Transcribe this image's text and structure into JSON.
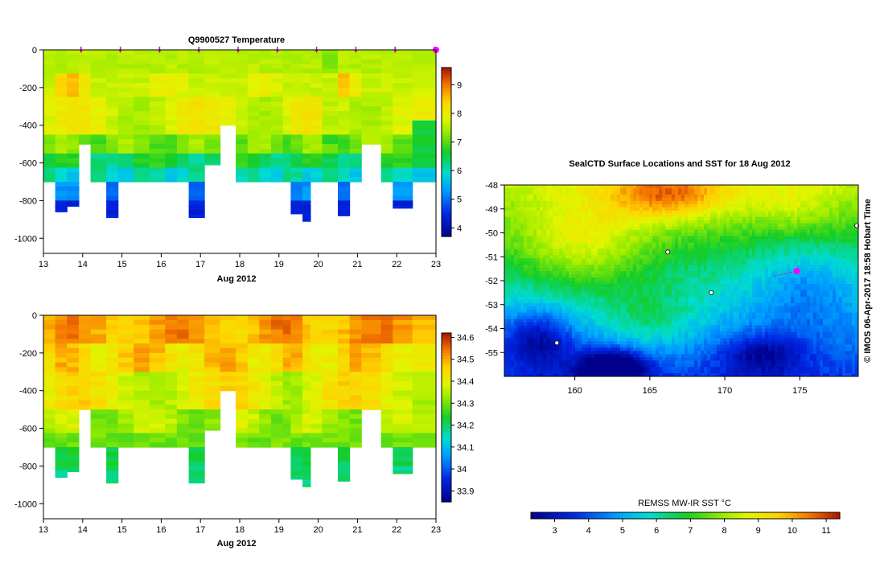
{
  "chart_data": [
    {
      "id": "temperature-section",
      "type": "heatmap",
      "title": "Q9900527  Temperature",
      "xlabel": "Aug 2012",
      "ylabel": "",
      "xlim": [
        13,
        23
      ],
      "ylim": [
        -1080,
        0
      ],
      "x_ticks": [
        "13",
        "14",
        "15",
        "16",
        "17",
        "18",
        "19",
        "20",
        "21",
        "22",
        "23"
      ],
      "y_ticks": [
        "0",
        "-200",
        "-400",
        "-600",
        "-800",
        "-1000"
      ],
      "profile_markers": [
        14,
        15,
        16,
        17,
        18,
        19,
        20,
        21,
        22,
        23
      ],
      "last_marker": 23,
      "profiles": [
        {
          "x0": 13.0,
          "x1": 13.3,
          "bottom": -700
        },
        {
          "x0": 13.3,
          "x1": 13.6,
          "bottom": -860
        },
        {
          "x0": 13.6,
          "x1": 13.9,
          "bottom": -830
        },
        {
          "x0": 13.9,
          "x1": 14.2,
          "bottom": -500
        },
        {
          "x0": 14.2,
          "x1": 14.6,
          "bottom": -700
        },
        {
          "x0": 14.6,
          "x1": 14.9,
          "bottom": -890
        },
        {
          "x0": 14.9,
          "x1": 15.3,
          "bottom": -700
        },
        {
          "x0": 15.3,
          "x1": 15.7,
          "bottom": -700
        },
        {
          "x0": 15.7,
          "x1": 16.1,
          "bottom": -700
        },
        {
          "x0": 16.1,
          "x1": 16.4,
          "bottom": -700
        },
        {
          "x0": 16.4,
          "x1": 16.7,
          "bottom": -700
        },
        {
          "x0": 16.7,
          "x1": 17.1,
          "bottom": -890
        },
        {
          "x0": 17.1,
          "x1": 17.5,
          "bottom": -610
        },
        {
          "x0": 17.5,
          "x1": 17.9,
          "bottom": -400
        },
        {
          "x0": 17.9,
          "x1": 18.2,
          "bottom": -700
        },
        {
          "x0": 18.2,
          "x1": 18.5,
          "bottom": -700
        },
        {
          "x0": 18.5,
          "x1": 18.8,
          "bottom": -700
        },
        {
          "x0": 18.8,
          "x1": 19.1,
          "bottom": -700
        },
        {
          "x0": 19.1,
          "x1": 19.3,
          "bottom": -700
        },
        {
          "x0": 19.3,
          "x1": 19.6,
          "bottom": -870
        },
        {
          "x0": 19.6,
          "x1": 19.8,
          "bottom": -910
        },
        {
          "x0": 19.8,
          "x1": 20.1,
          "bottom": -700
        },
        {
          "x0": 20.1,
          "x1": 20.5,
          "bottom": -700
        },
        {
          "x0": 20.5,
          "x1": 20.8,
          "bottom": -880
        },
        {
          "x0": 20.8,
          "x1": 21.1,
          "bottom": -700
        },
        {
          "x0": 21.1,
          "x1": 21.6,
          "bottom": -500
        },
        {
          "x0": 21.6,
          "x1": 21.9,
          "bottom": -700
        },
        {
          "x0": 21.9,
          "x1": 22.4,
          "bottom": -840
        },
        {
          "x0": 22.4,
          "x1": 23.0,
          "bottom": -700
        }
      ],
      "colorbar": {
        "min": 3.7,
        "max": 9.6,
        "ticks": [
          "4",
          "5",
          "6",
          "7",
          "8",
          "9"
        ],
        "values": [
          4,
          5,
          6,
          7,
          8,
          9
        ]
      }
    },
    {
      "id": "salinity-section",
      "type": "heatmap",
      "title": "",
      "xlabel": "Aug 2012",
      "ylabel": "",
      "xlim": [
        13,
        23
      ],
      "ylim": [
        -1080,
        0
      ],
      "x_ticks": [
        "13",
        "14",
        "15",
        "16",
        "17",
        "18",
        "19",
        "20",
        "21",
        "22",
        "23"
      ],
      "y_ticks": [
        "0",
        "-200",
        "-400",
        "-600",
        "-800",
        "-1000"
      ],
      "colorbar": {
        "min": 33.85,
        "max": 34.62,
        "ticks": [
          "33.9",
          "34",
          "34.1",
          "34.2",
          "34.3",
          "34.4",
          "34.5",
          "34.6"
        ],
        "values": [
          33.9,
          34.0,
          34.1,
          34.2,
          34.3,
          34.4,
          34.5,
          34.6
        ]
      }
    },
    {
      "id": "sst-map",
      "type": "heatmap",
      "title": "SealCTD Surface Locations and SST for 18 Aug 2012",
      "xlabel": "",
      "ylabel": "",
      "xlim": [
        155.3,
        178.9
      ],
      "ylim": [
        -56.0,
        -48.0
      ],
      "x_ticks": [
        "160",
        "165",
        "170",
        "175"
      ],
      "x_tick_values": [
        160,
        165,
        170,
        175
      ],
      "y_ticks": [
        "-48",
        "-49",
        "-50",
        "-51",
        "-52",
        "-53",
        "-54",
        "-55"
      ],
      "y_tick_values": [
        -48,
        -49,
        -50,
        -51,
        -52,
        -53,
        -54,
        -55
      ],
      "current_location": {
        "lon": 174.8,
        "lat": -51.6
      },
      "colorbar": {
        "label": "REMSS MW-IR SST °C",
        "min": 2.3,
        "max": 11.4,
        "ticks": [
          "3",
          "4",
          "5",
          "6",
          "7",
          "8",
          "9",
          "10",
          "11"
        ],
        "values": [
          3,
          4,
          5,
          6,
          7,
          8,
          9,
          10,
          11
        ]
      }
    }
  ],
  "credit": "© IMOS 06-Apr-2017 18:58 Hobart Time"
}
